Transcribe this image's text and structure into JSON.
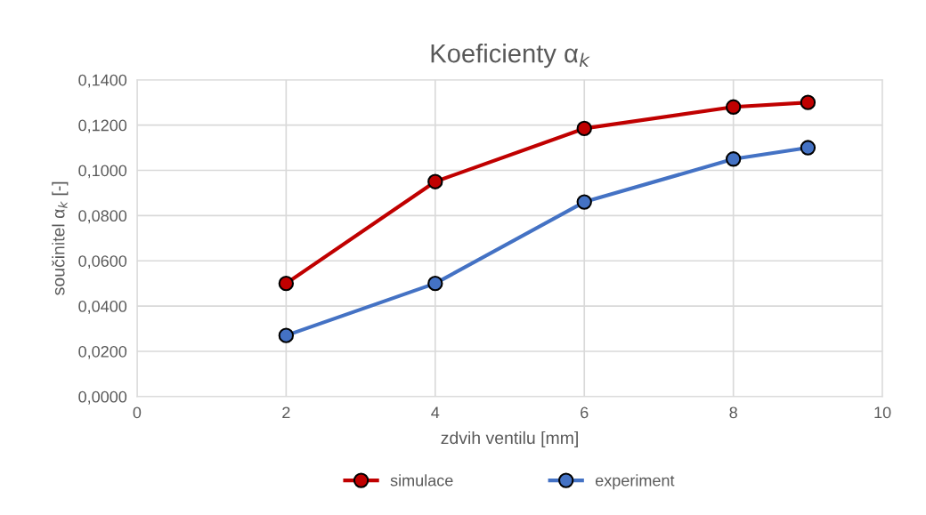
{
  "chart_data": {
    "type": "line",
    "title": "Koeficienty α$_{k}$",
    "xlabel": "zdvih ventilu [mm]",
    "ylabel": "součinitel α$_{k}$ [-]",
    "x": [
      2,
      4,
      6,
      8,
      9
    ],
    "series": [
      {
        "name": "simulace",
        "color": "#c00000",
        "values": [
          0.05,
          0.095,
          0.1185,
          0.128,
          0.13
        ]
      },
      {
        "name": "experiment",
        "color": "#4472c4",
        "values": [
          0.027,
          0.05,
          0.086,
          0.105,
          0.11
        ]
      }
    ],
    "xlim": [
      0,
      10
    ],
    "xticks": [
      0,
      2,
      4,
      6,
      8,
      10
    ],
    "ylim": [
      0,
      0.14
    ],
    "yticks": [
      {
        "value": 0,
        "label": "0,0000"
      },
      {
        "value": 0.02,
        "label": "0,0200"
      },
      {
        "value": 0.04,
        "label": "0,0400"
      },
      {
        "value": 0.06,
        "label": "0,0600"
      },
      {
        "value": 0.08,
        "label": "0,0800"
      },
      {
        "value": 0.1,
        "label": "0,1000"
      },
      {
        "value": 0.12,
        "label": "0,1200"
      },
      {
        "value": 0.14,
        "label": "0,1400"
      }
    ],
    "grid": true,
    "legend": "bottom",
    "marker": "circle",
    "line_style": "solid"
  }
}
